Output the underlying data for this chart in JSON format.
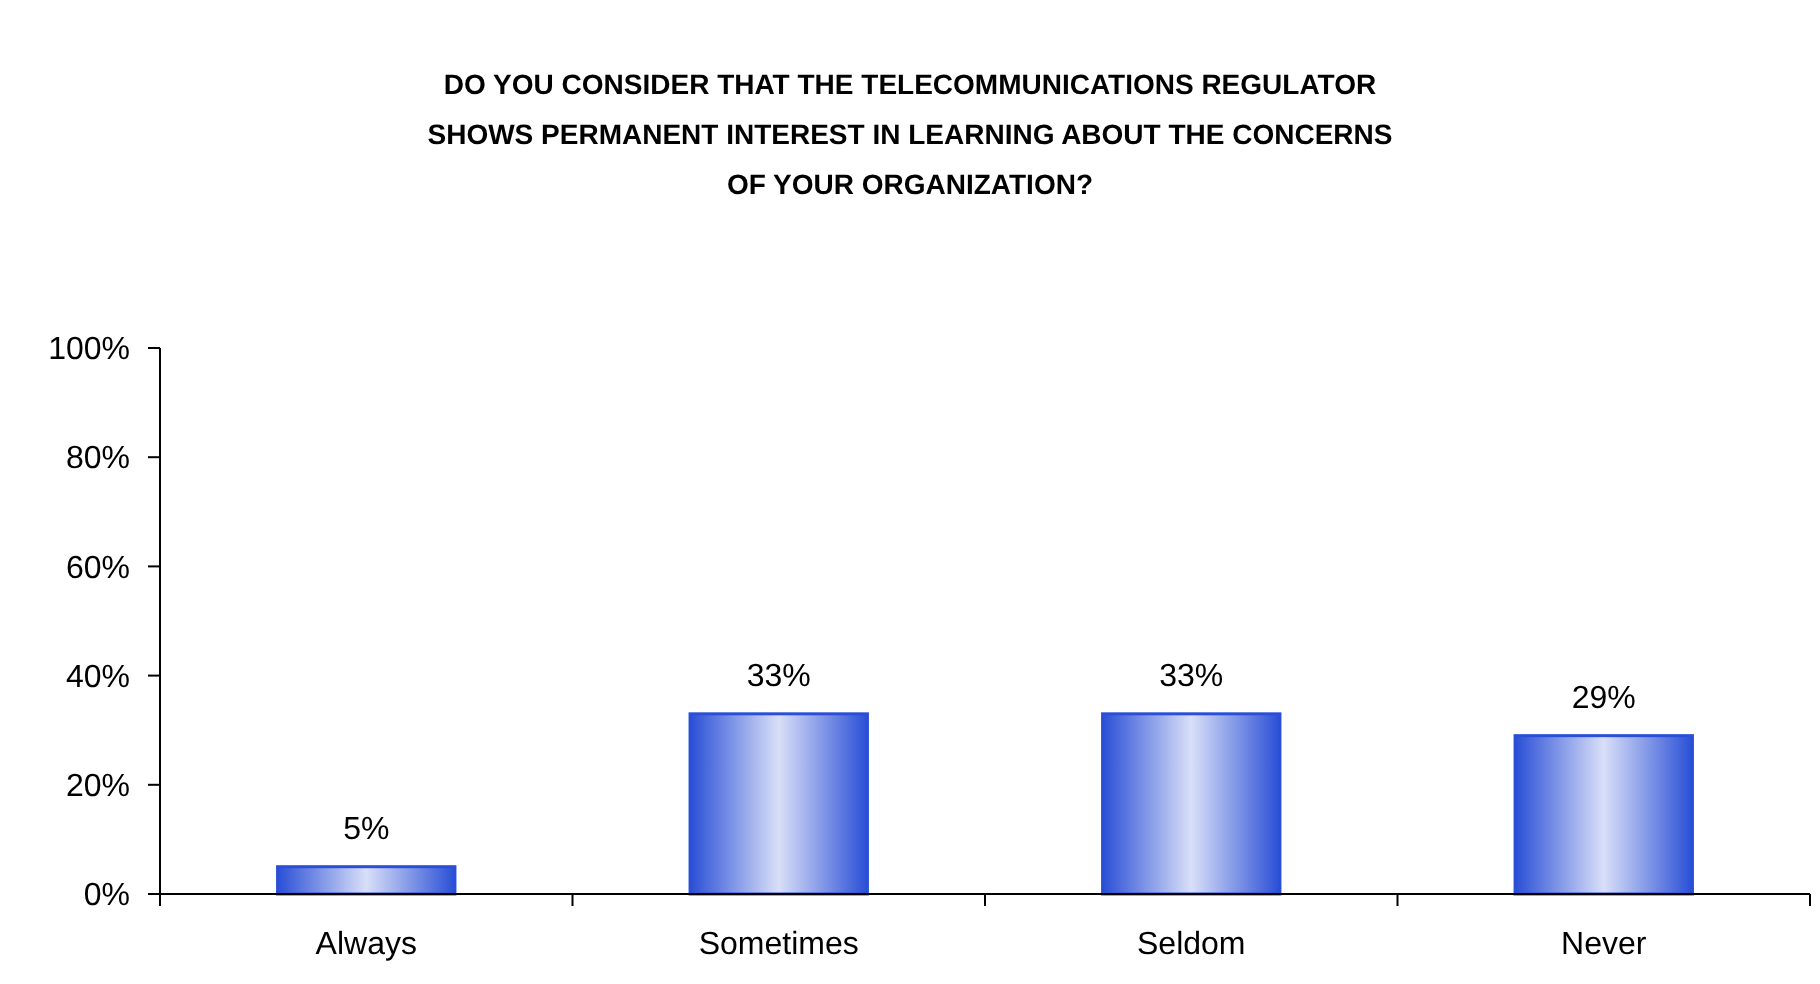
{
  "chart_data": {
    "type": "bar",
    "title": "DO YOU CONSIDER THAT THE TELECOMMUNICATIONS REGULATOR\nSHOWS PERMANENT INTEREST IN LEARNING ABOUT THE CONCERNS\nOF YOUR ORGANIZATION?",
    "categories": [
      "Always",
      "Sometimes",
      "Seldom",
      "Never"
    ],
    "values": [
      5,
      33,
      33,
      29
    ],
    "value_labels": [
      "5%",
      "33%",
      "33%",
      "29%"
    ],
    "color": "#2a4fd6",
    "ylim": [
      0,
      100
    ],
    "yticks": [
      {
        "value": 0,
        "label": "0%"
      },
      {
        "value": 20,
        "label": "20%"
      },
      {
        "value": 40,
        "label": "40%"
      },
      {
        "value": 60,
        "label": "60%"
      },
      {
        "value": 80,
        "label": "80%"
      },
      {
        "value": 100,
        "label": "100%"
      }
    ],
    "grid": false
  }
}
